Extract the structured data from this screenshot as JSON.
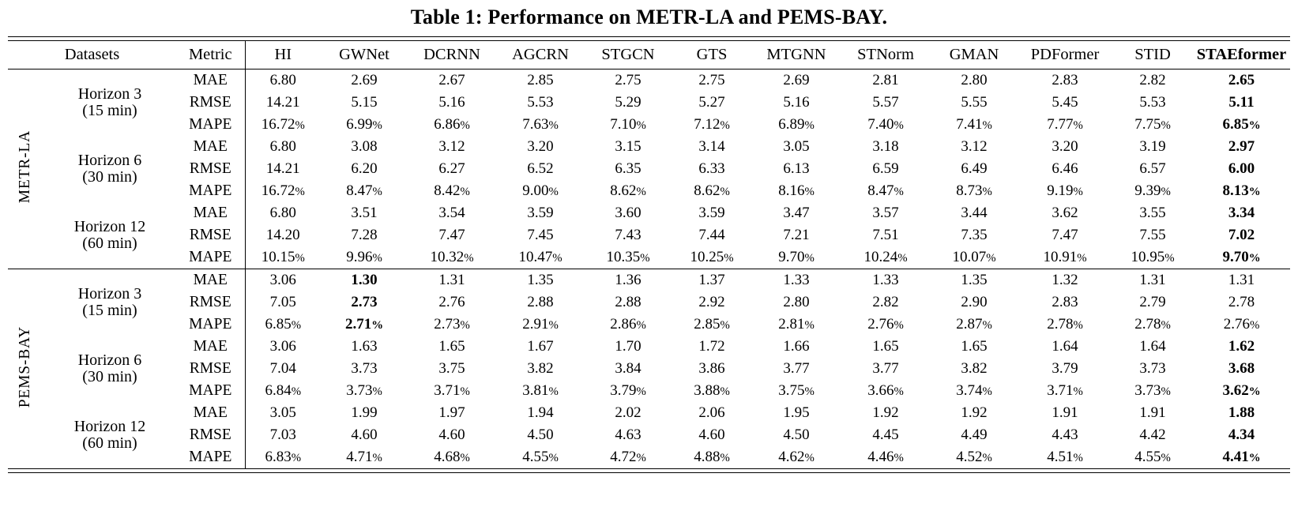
{
  "title": "Table 1: Performance on METR-LA and PEMS-BAY.",
  "table": {
    "corner": {
      "datasets": "Datasets",
      "metric": "Metric"
    },
    "models": [
      "HI",
      "GWNet",
      "DCRNN",
      "AGCRN",
      "STGCN",
      "GTS",
      "MTGNN",
      "STNorm",
      "GMAN",
      "PDFormer",
      "STID",
      "STAEformer"
    ],
    "best_model": "STAEformer",
    "sections": [
      {
        "dataset": "METR-LA",
        "horizons": [
          {
            "line1": "Horizon 3",
            "line2": "(15 min)",
            "rows": [
              {
                "metric": "MAE",
                "bold_indices": [
                  11
                ],
                "values": [
                  "6.80",
                  "2.69",
                  "2.67",
                  "2.85",
                  "2.75",
                  "2.75",
                  "2.69",
                  "2.81",
                  "2.80",
                  "2.83",
                  "2.82",
                  "2.65"
                ]
              },
              {
                "metric": "RMSE",
                "bold_indices": [
                  11
                ],
                "values": [
                  "14.21",
                  "5.15",
                  "5.16",
                  "5.53",
                  "5.29",
                  "5.27",
                  "5.16",
                  "5.57",
                  "5.55",
                  "5.45",
                  "5.53",
                  "5.11"
                ]
              },
              {
                "metric": "MAPE",
                "bold_indices": [
                  11
                ],
                "values": [
                  "16.72%",
                  "6.99%",
                  "6.86%",
                  "7.63%",
                  "7.10%",
                  "7.12%",
                  "6.89%",
                  "7.40%",
                  "7.41%",
                  "7.77%",
                  "7.75%",
                  "6.85%"
                ]
              }
            ]
          },
          {
            "line1": "Horizon 6",
            "line2": "(30 min)",
            "rows": [
              {
                "metric": "MAE",
                "bold_indices": [
                  11
                ],
                "values": [
                  "6.80",
                  "3.08",
                  "3.12",
                  "3.20",
                  "3.15",
                  "3.14",
                  "3.05",
                  "3.18",
                  "3.12",
                  "3.20",
                  "3.19",
                  "2.97"
                ]
              },
              {
                "metric": "RMSE",
                "bold_indices": [
                  11
                ],
                "values": [
                  "14.21",
                  "6.20",
                  "6.27",
                  "6.52",
                  "6.35",
                  "6.33",
                  "6.13",
                  "6.59",
                  "6.49",
                  "6.46",
                  "6.57",
                  "6.00"
                ]
              },
              {
                "metric": "MAPE",
                "bold_indices": [
                  11
                ],
                "values": [
                  "16.72%",
                  "8.47%",
                  "8.42%",
                  "9.00%",
                  "8.62%",
                  "8.62%",
                  "8.16%",
                  "8.47%",
                  "8.73%",
                  "9.19%",
                  "9.39%",
                  "8.13%"
                ]
              }
            ]
          },
          {
            "line1": "Horizon 12",
            "line2": "(60 min)",
            "rows": [
              {
                "metric": "MAE",
                "bold_indices": [
                  11
                ],
                "values": [
                  "6.80",
                  "3.51",
                  "3.54",
                  "3.59",
                  "3.60",
                  "3.59",
                  "3.47",
                  "3.57",
                  "3.44",
                  "3.62",
                  "3.55",
                  "3.34"
                ]
              },
              {
                "metric": "RMSE",
                "bold_indices": [
                  11
                ],
                "values": [
                  "14.20",
                  "7.28",
                  "7.47",
                  "7.45",
                  "7.43",
                  "7.44",
                  "7.21",
                  "7.51",
                  "7.35",
                  "7.47",
                  "7.55",
                  "7.02"
                ]
              },
              {
                "metric": "MAPE",
                "bold_indices": [
                  11
                ],
                "values": [
                  "10.15%",
                  "9.96%",
                  "10.32%",
                  "10.47%",
                  "10.35%",
                  "10.25%",
                  "9.70%",
                  "10.24%",
                  "10.07%",
                  "10.91%",
                  "10.95%",
                  "9.70%"
                ]
              }
            ]
          }
        ]
      },
      {
        "dataset": "PEMS-BAY",
        "horizons": [
          {
            "line1": "Horizon 3",
            "line2": "(15 min)",
            "rows": [
              {
                "metric": "MAE",
                "bold_indices": [
                  1
                ],
                "values": [
                  "3.06",
                  "1.30",
                  "1.31",
                  "1.35",
                  "1.36",
                  "1.37",
                  "1.33",
                  "1.33",
                  "1.35",
                  "1.32",
                  "1.31",
                  "1.31"
                ]
              },
              {
                "metric": "RMSE",
                "bold_indices": [
                  1
                ],
                "values": [
                  "7.05",
                  "2.73",
                  "2.76",
                  "2.88",
                  "2.88",
                  "2.92",
                  "2.80",
                  "2.82",
                  "2.90",
                  "2.83",
                  "2.79",
                  "2.78"
                ]
              },
              {
                "metric": "MAPE",
                "bold_indices": [
                  1
                ],
                "values": [
                  "6.85%",
                  "2.71%",
                  "2.73%",
                  "2.91%",
                  "2.86%",
                  "2.85%",
                  "2.81%",
                  "2.76%",
                  "2.87%",
                  "2.78%",
                  "2.78%",
                  "2.76%"
                ]
              }
            ]
          },
          {
            "line1": "Horizon 6",
            "line2": "(30 min)",
            "rows": [
              {
                "metric": "MAE",
                "bold_indices": [
                  11
                ],
                "values": [
                  "3.06",
                  "1.63",
                  "1.65",
                  "1.67",
                  "1.70",
                  "1.72",
                  "1.66",
                  "1.65",
                  "1.65",
                  "1.64",
                  "1.64",
                  "1.62"
                ]
              },
              {
                "metric": "RMSE",
                "bold_indices": [
                  11
                ],
                "values": [
                  "7.04",
                  "3.73",
                  "3.75",
                  "3.82",
                  "3.84",
                  "3.86",
                  "3.77",
                  "3.77",
                  "3.82",
                  "3.79",
                  "3.73",
                  "3.68"
                ]
              },
              {
                "metric": "MAPE",
                "bold_indices": [
                  11
                ],
                "values": [
                  "6.84%",
                  "3.73%",
                  "3.71%",
                  "3.81%",
                  "3.79%",
                  "3.88%",
                  "3.75%",
                  "3.66%",
                  "3.74%",
                  "3.71%",
                  "3.73%",
                  "3.62%"
                ]
              }
            ]
          },
          {
            "line1": "Horizon 12",
            "line2": "(60 min)",
            "rows": [
              {
                "metric": "MAE",
                "bold_indices": [
                  11
                ],
                "values": [
                  "3.05",
                  "1.99",
                  "1.97",
                  "1.94",
                  "2.02",
                  "2.06",
                  "1.95",
                  "1.92",
                  "1.92",
                  "1.91",
                  "1.91",
                  "1.88"
                ]
              },
              {
                "metric": "RMSE",
                "bold_indices": [
                  11
                ],
                "values": [
                  "7.03",
                  "4.60",
                  "4.60",
                  "4.50",
                  "4.63",
                  "4.60",
                  "4.50",
                  "4.45",
                  "4.49",
                  "4.43",
                  "4.42",
                  "4.34"
                ]
              },
              {
                "metric": "MAPE",
                "bold_indices": [
                  11
                ],
                "values": [
                  "6.83%",
                  "4.71%",
                  "4.68%",
                  "4.55%",
                  "4.72%",
                  "4.88%",
                  "4.62%",
                  "4.46%",
                  "4.52%",
                  "4.51%",
                  "4.55%",
                  "4.41%"
                ]
              }
            ]
          }
        ]
      }
    ]
  }
}
